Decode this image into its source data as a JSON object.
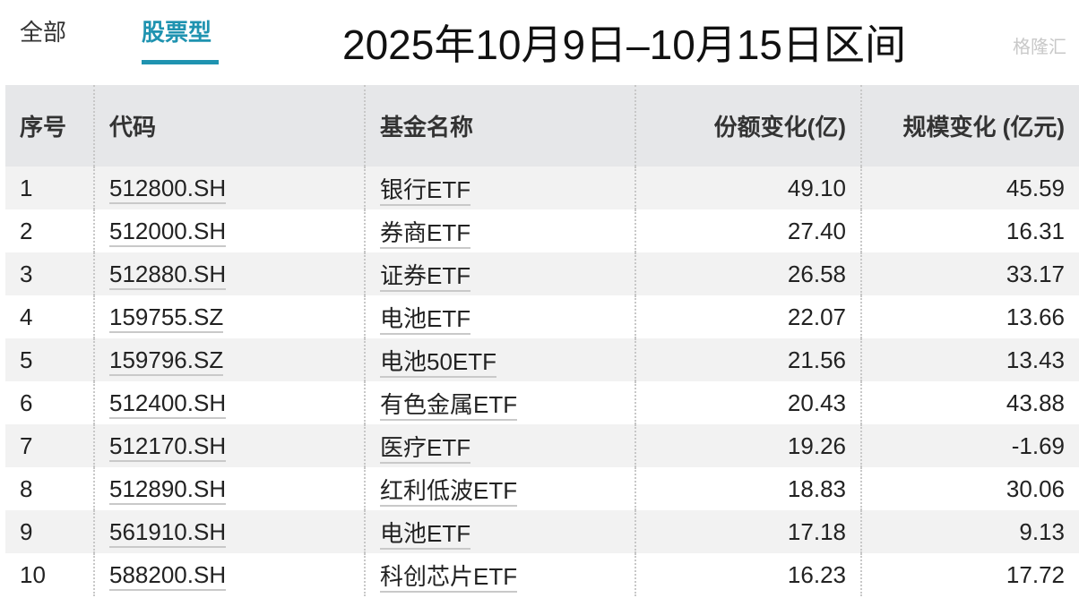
{
  "tabs": [
    {
      "label": "全部",
      "active": false
    },
    {
      "label": "股票型",
      "active": true
    }
  ],
  "title": "2025年10月9日–10月15日区间",
  "accent_color": "#1f93b0",
  "table": {
    "headers": [
      "序号",
      "代码",
      "基金名称",
      "份额变化(亿)",
      "规模变化 (亿元)"
    ],
    "rows": [
      [
        "1",
        "512800.SH",
        "银行ETF",
        "49.10",
        "45.59"
      ],
      [
        "2",
        "512000.SH",
        "券商ETF",
        "27.40",
        "16.31"
      ],
      [
        "3",
        "512880.SH",
        "证券ETF",
        "26.58",
        "33.17"
      ],
      [
        "4",
        "159755.SZ",
        "电池ETF",
        "22.07",
        "13.66"
      ],
      [
        "5",
        "159796.SZ",
        "电池50ETF",
        "21.56",
        "13.43"
      ],
      [
        "6",
        "512400.SH",
        "有色金属ETF",
        "20.43",
        "43.88"
      ],
      [
        "7",
        "512170.SH",
        "医疗ETF",
        "19.26",
        "-1.69"
      ],
      [
        "8",
        "512890.SH",
        "红利低波ETF",
        "18.83",
        "30.06"
      ],
      [
        "9",
        "561910.SH",
        "电池ETF",
        "17.18",
        "9.13"
      ],
      [
        "10",
        "588200.SH",
        "科创芯片ETF",
        "16.23",
        "17.72"
      ]
    ]
  },
  "watermark": "格隆汇"
}
